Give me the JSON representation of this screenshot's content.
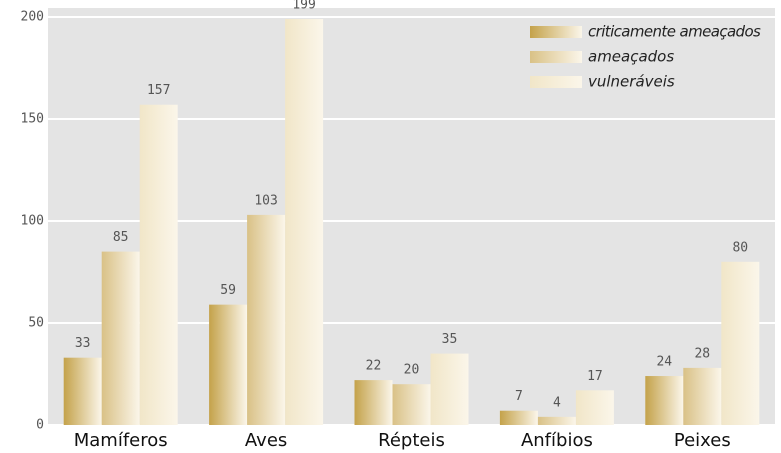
{
  "chart_data": {
    "type": "bar",
    "categories": [
      "Mamíferos",
      "Aves",
      "Répteis",
      "Anfíbios",
      "Peixes"
    ],
    "series": [
      {
        "name": "criticamente ameaçados",
        "color": "#c4a24a",
        "values": [
          33,
          59,
          22,
          7,
          24
        ]
      },
      {
        "name": "ameaçados",
        "color": "#d9c186",
        "values": [
          85,
          103,
          20,
          4,
          28
        ]
      },
      {
        "name": "vulneráveis",
        "color": "#f1e6c8",
        "values": [
          157,
          199,
          35,
          17,
          80
        ]
      }
    ],
    "ylim": [
      0,
      200
    ],
    "yticks": [
      0,
      50,
      100,
      150,
      200
    ],
    "grid": true,
    "legend": "top-right"
  }
}
